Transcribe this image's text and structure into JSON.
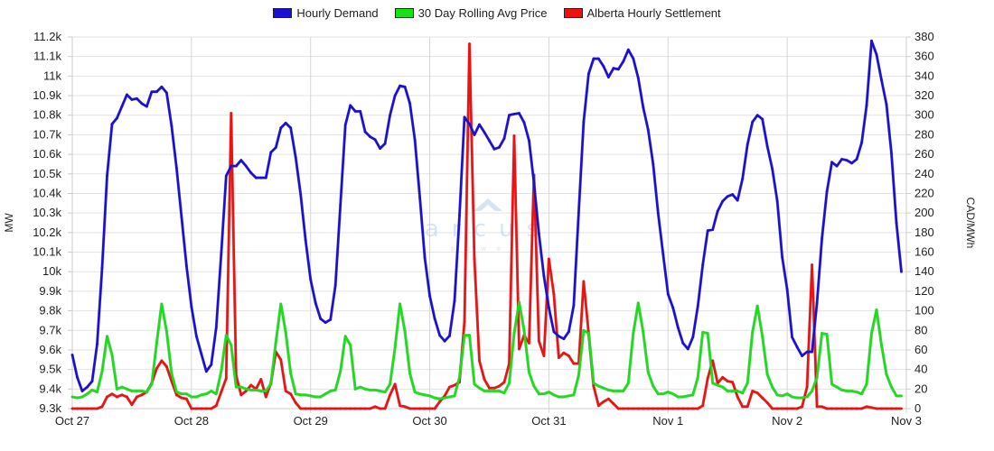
{
  "chart_data": {
    "type": "line",
    "title": "",
    "legend_position": "top-center",
    "grid": true,
    "x_start": "Oct 27",
    "x_unit": "hour",
    "x_tick_labels": [
      "Oct 27",
      "Oct 28",
      "Oct 29",
      "Oct 30",
      "Oct 31",
      "Nov 1",
      "Nov 2",
      "Nov 3"
    ],
    "ylabel_left": "MW",
    "ylabel_right": "CAD/MWh",
    "ylim_left": [
      9300,
      11200
    ],
    "ylim_right": [
      0,
      380
    ],
    "y_left_tick_labels": [
      "9.3k",
      "9.4k",
      "9.5k",
      "9.6k",
      "9.7k",
      "9.8k",
      "9.9k",
      "10k",
      "10.1k",
      "10.2k",
      "10.3k",
      "10.4k",
      "10.5k",
      "10.6k",
      "10.7k",
      "10.8k",
      "10.9k",
      "11k",
      "11.1k",
      "11.2k"
    ],
    "y_right_tick_labels": [
      "0",
      "20",
      "40",
      "60",
      "80",
      "100",
      "120",
      "140",
      "160",
      "180",
      "200",
      "220",
      "240",
      "260",
      "280",
      "300",
      "320",
      "340",
      "360",
      "380"
    ],
    "watermark": "arcus power",
    "series": [
      {
        "name": "Hourly Demand",
        "axis": "left",
        "color": "#1a0fd6",
        "values": [
          9575,
          9460,
          9390,
          9410,
          9440,
          9630,
          10020,
          10490,
          10755,
          10785,
          10845,
          10905,
          10880,
          10885,
          10860,
          10845,
          10920,
          10920,
          10945,
          10915,
          10745,
          10530,
          10280,
          10030,
          9820,
          9670,
          9580,
          9490,
          9525,
          9715,
          10090,
          10490,
          10540,
          10540,
          10570,
          10540,
          10505,
          10480,
          10480,
          10480,
          10610,
          10635,
          10735,
          10760,
          10735,
          10585,
          10395,
          10160,
          9960,
          9840,
          9760,
          9740,
          9755,
          9930,
          10340,
          10750,
          10850,
          10820,
          10820,
          10715,
          10690,
          10675,
          10630,
          10655,
          10800,
          10900,
          10950,
          10945,
          10860,
          10675,
          10380,
          10070,
          9876,
          9760,
          9675,
          9645,
          9672,
          9850,
          10288,
          10790,
          10755,
          10700,
          10752,
          10713,
          10670,
          10627,
          10636,
          10681,
          10800,
          10806,
          10810,
          10763,
          10670,
          10455,
          10193,
          9978,
          9816,
          9693,
          9670,
          9657,
          9693,
          9827,
          10303,
          10766,
          11012,
          11089,
          11089,
          11050,
          10995,
          11040,
          11035,
          11075,
          11135,
          11090,
          10990,
          10840,
          10725,
          10550,
          10300,
          10090,
          9885,
          9815,
          9715,
          9635,
          9605,
          9665,
          9825,
          10035,
          10210,
          10215,
          10310,
          10360,
          10385,
          10395,
          10365,
          10475,
          10650,
          10765,
          10800,
          10780,
          10640,
          10525,
          10360,
          10075,
          9910,
          9665,
          9615,
          9570,
          9590,
          9590,
          9840,
          10170,
          10410,
          10560,
          10540,
          10575,
          10570,
          10555,
          10575,
          10660,
          10850,
          11180,
          11110,
          10980,
          10855,
          10605,
          10250,
          10000
        ]
      },
      {
        "name": "30 Day Rolling Avg Price",
        "axis": "right",
        "color": "#17e017",
        "values": [
          12,
          11,
          12,
          15,
          19,
          17,
          38,
          74,
          55,
          20,
          22,
          20,
          18,
          18,
          18,
          17,
          25,
          67,
          107,
          79,
          36,
          17,
          15,
          15,
          12,
          12,
          14,
          15,
          18,
          15,
          38,
          75,
          65,
          22,
          22,
          20,
          19,
          19,
          18,
          18,
          25,
          68,
          107,
          78,
          36,
          15,
          14,
          14,
          13,
          12,
          12,
          15,
          18,
          19,
          38,
          74,
          65,
          20,
          22,
          20,
          19,
          19,
          18,
          17,
          25,
          62,
          107,
          79,
          36,
          17,
          15,
          14,
          13,
          11,
          10,
          11,
          12,
          13,
          32,
          75,
          75,
          25,
          21,
          18,
          18,
          18,
          18,
          16,
          26,
          77,
          109,
          80,
          37,
          23,
          15,
          15,
          17,
          14,
          12,
          12,
          13,
          14,
          34,
          80,
          77,
          26,
          23,
          21,
          19,
          18,
          18,
          18,
          26,
          77,
          108,
          78,
          37,
          23,
          15,
          15,
          17,
          15,
          12,
          12,
          13,
          14,
          32,
          78,
          77,
          26,
          24,
          22,
          18,
          18,
          18,
          16,
          26,
          78,
          105,
          74,
          35,
          22,
          14,
          13,
          15,
          12,
          11,
          11,
          12,
          18,
          32,
          77,
          76,
          25,
          22,
          19,
          18,
          18,
          17,
          15,
          25,
          77,
          101,
          65,
          35,
          22,
          13,
          13
        ]
      },
      {
        "name": "Alberta Hourly Settlement",
        "axis": "right",
        "color": "#ee1111",
        "values": [
          0,
          0,
          0,
          0,
          0,
          0,
          2,
          12,
          15,
          12,
          14,
          12,
          4,
          12,
          14,
          17,
          26,
          41,
          49,
          43,
          28,
          14,
          11,
          10,
          0,
          0,
          0,
          0,
          0,
          3,
          17,
          31,
          302,
          34,
          14,
          18,
          24,
          20,
          30,
          12,
          26,
          58,
          50,
          18,
          15,
          6,
          0,
          0,
          0,
          0,
          0,
          0,
          0,
          0,
          0,
          0,
          0,
          0,
          0,
          0,
          0,
          2,
          0,
          0,
          14,
          25,
          3,
          2,
          0,
          0,
          0,
          0,
          0,
          0,
          7,
          13,
          22,
          24,
          27,
          89,
          373,
          153,
          49,
          30,
          21,
          21,
          23,
          27,
          46,
          279,
          61,
          75,
          67,
          239,
          69,
          54,
          153,
          117,
          52,
          57,
          54,
          46,
          46,
          130,
          77,
          23,
          3,
          7,
          10,
          5,
          0,
          0,
          0,
          0,
          0,
          0,
          0,
          0,
          0,
          0,
          0,
          0,
          0,
          0,
          0,
          0,
          0,
          3,
          31,
          49,
          26,
          32,
          28,
          27,
          12,
          2,
          2,
          18,
          16,
          11,
          6,
          0,
          0,
          0,
          0,
          0,
          0,
          2,
          22,
          147,
          2,
          2,
          0,
          0,
          0,
          0,
          0,
          0,
          0,
          0,
          2,
          1,
          0,
          0,
          0,
          0,
          0,
          0
        ]
      }
    ]
  }
}
